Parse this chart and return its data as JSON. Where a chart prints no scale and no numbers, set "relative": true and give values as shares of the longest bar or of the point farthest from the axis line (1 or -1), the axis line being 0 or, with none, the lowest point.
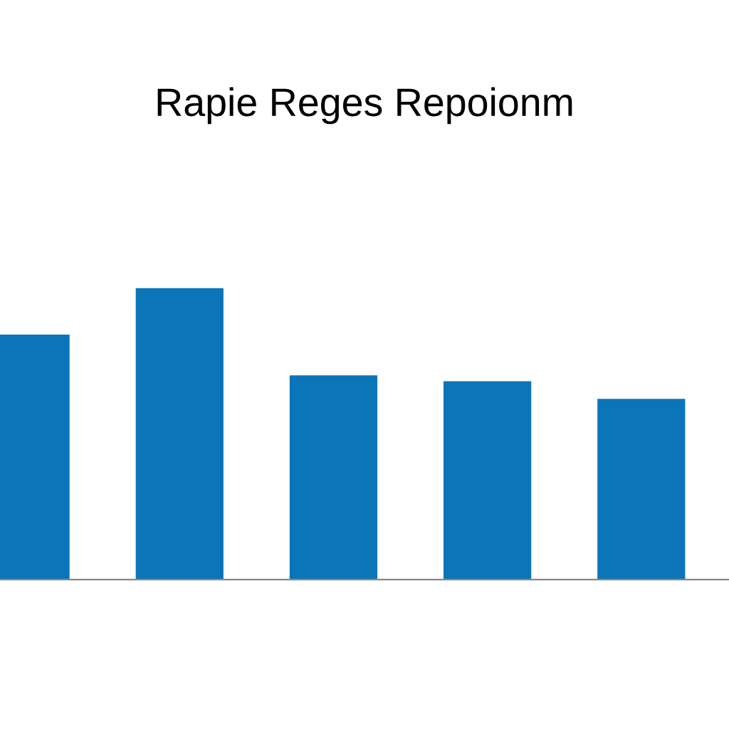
{
  "chart_data": {
    "type": "bar",
    "title": "Rapie Reges Repoionm",
    "categories": [
      null,
      null,
      null,
      null,
      null
    ],
    "values": [
      0.84,
      1,
      0.7,
      0.68,
      0.62
    ],
    "color": "#0a75b8",
    "relative": true,
    "grid": false
  }
}
